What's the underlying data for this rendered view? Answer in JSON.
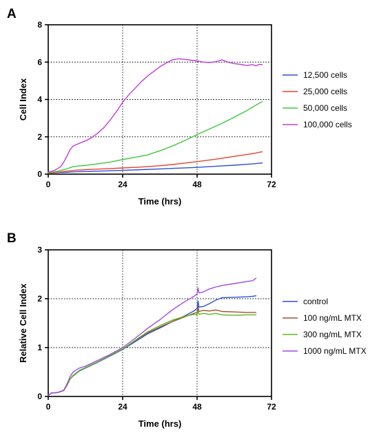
{
  "chart_data": [
    {
      "type": "line",
      "panel_label": "A",
      "xlabel": "Time (hrs)",
      "ylabel": "Cell Index",
      "xlim": [
        0,
        72
      ],
      "ylim": [
        0,
        8
      ],
      "x_ticks": [
        "0",
        "24",
        "48",
        "72"
      ],
      "y_ticks": [
        "0",
        "2",
        "4",
        "6",
        "8"
      ],
      "grid": "dotted, x at 24 and 48, y at 2, 4 and 6",
      "legend_position": "right",
      "series": [
        {
          "name": "12,500 cells",
          "color": "#2e4fd6",
          "points": [
            [
              0,
              0.05
            ],
            [
              2,
              0.07
            ],
            [
              4,
              0.09
            ],
            [
              6,
              0.1
            ],
            [
              8,
              0.12
            ],
            [
              12,
              0.14
            ],
            [
              16,
              0.16
            ],
            [
              20,
              0.18
            ],
            [
              24,
              0.2
            ],
            [
              30,
              0.24
            ],
            [
              36,
              0.28
            ],
            [
              42,
              0.32
            ],
            [
              48,
              0.36
            ],
            [
              54,
              0.42
            ],
            [
              60,
              0.48
            ],
            [
              66,
              0.55
            ],
            [
              69,
              0.6
            ]
          ]
        },
        {
          "name": "25,000 cells",
          "color": "#e8412c",
          "points": [
            [
              0,
              0.05
            ],
            [
              2,
              0.08
            ],
            [
              4,
              0.12
            ],
            [
              6,
              0.16
            ],
            [
              8,
              0.2
            ],
            [
              12,
              0.24
            ],
            [
              16,
              0.27
            ],
            [
              20,
              0.3
            ],
            [
              24,
              0.33
            ],
            [
              30,
              0.38
            ],
            [
              36,
              0.45
            ],
            [
              42,
              0.55
            ],
            [
              48,
              0.67
            ],
            [
              54,
              0.8
            ],
            [
              60,
              0.95
            ],
            [
              66,
              1.1
            ],
            [
              69,
              1.2
            ]
          ]
        },
        {
          "name": "50,000 cells",
          "color": "#3cc73c",
          "points": [
            [
              0,
              0.07
            ],
            [
              2,
              0.12
            ],
            [
              4,
              0.2
            ],
            [
              6,
              0.28
            ],
            [
              8,
              0.4
            ],
            [
              10,
              0.44
            ],
            [
              12,
              0.47
            ],
            [
              16,
              0.55
            ],
            [
              20,
              0.65
            ],
            [
              24,
              0.78
            ],
            [
              28,
              0.9
            ],
            [
              32,
              1.03
            ],
            [
              36,
              1.25
            ],
            [
              40,
              1.5
            ],
            [
              44,
              1.8
            ],
            [
              48,
              2.12
            ],
            [
              52,
              2.42
            ],
            [
              56,
              2.72
            ],
            [
              60,
              3.05
            ],
            [
              64,
              3.4
            ],
            [
              67,
              3.7
            ],
            [
              69,
              3.88
            ]
          ]
        },
        {
          "name": "100,000 cells",
          "color": "#bf3bd6",
          "points": [
            [
              0,
              0.1
            ],
            [
              2,
              0.2
            ],
            [
              4,
              0.4
            ],
            [
              5,
              0.65
            ],
            [
              6,
              0.95
            ],
            [
              7,
              1.3
            ],
            [
              8,
              1.5
            ],
            [
              10,
              1.65
            ],
            [
              12,
              1.78
            ],
            [
              14,
              1.95
            ],
            [
              16,
              2.2
            ],
            [
              18,
              2.5
            ],
            [
              20,
              2.9
            ],
            [
              22,
              3.35
            ],
            [
              24,
              3.85
            ],
            [
              26,
              4.25
            ],
            [
              28,
              4.6
            ],
            [
              30,
              4.95
            ],
            [
              32,
              5.25
            ],
            [
              34,
              5.5
            ],
            [
              36,
              5.75
            ],
            [
              38,
              5.95
            ],
            [
              40,
              6.12
            ],
            [
              42,
              6.18
            ],
            [
              44,
              6.15
            ],
            [
              46,
              6.1
            ],
            [
              48,
              6.07
            ],
            [
              50,
              6.0
            ],
            [
              52,
              5.98
            ],
            [
              54,
              6.02
            ],
            [
              56,
              6.12
            ],
            [
              58,
              6.0
            ],
            [
              60,
              5.92
            ],
            [
              62,
              5.88
            ],
            [
              64,
              5.82
            ],
            [
              66,
              5.86
            ],
            [
              67,
              5.8
            ],
            [
              68,
              5.88
            ],
            [
              69,
              5.86
            ]
          ]
        }
      ]
    },
    {
      "type": "line",
      "panel_label": "B",
      "xlabel": "Time (hrs)",
      "ylabel": "Relative Cell Index",
      "xlim": [
        0,
        72
      ],
      "ylim": [
        0,
        3
      ],
      "x_ticks": [
        "0",
        "24",
        "48",
        "72"
      ],
      "y_ticks": [
        "0",
        "1",
        "2",
        "3"
      ],
      "grid": "dotted, x at 24 and 48, y at 1 and 2",
      "legend_position": "right",
      "series": [
        {
          "name": "control",
          "color": "#2e4fd6",
          "points": [
            [
              0,
              0.02
            ],
            [
              1,
              0.07
            ],
            [
              3,
              0.08
            ],
            [
              5,
              0.12
            ],
            [
              6,
              0.22
            ],
            [
              7,
              0.35
            ],
            [
              8,
              0.42
            ],
            [
              10,
              0.52
            ],
            [
              12,
              0.58
            ],
            [
              16,
              0.7
            ],
            [
              20,
              0.83
            ],
            [
              24,
              0.96
            ],
            [
              28,
              1.12
            ],
            [
              32,
              1.28
            ],
            [
              36,
              1.4
            ],
            [
              40,
              1.53
            ],
            [
              44,
              1.65
            ],
            [
              47,
              1.75
            ],
            [
              48,
              1.8
            ],
            [
              48.3,
              1.95
            ],
            [
              48.6,
              1.83
            ],
            [
              50,
              1.84
            ],
            [
              52,
              1.9
            ],
            [
              54,
              1.97
            ],
            [
              56,
              2.02
            ],
            [
              60,
              2.03
            ],
            [
              64,
              2.04
            ],
            [
              66,
              2.05
            ],
            [
              67,
              2.06
            ]
          ]
        },
        {
          "name": "100 ng/mL MTX",
          "color": "#a0522d",
          "points": [
            [
              0,
              0.02
            ],
            [
              1,
              0.07
            ],
            [
              3,
              0.08
            ],
            [
              5,
              0.12
            ],
            [
              6,
              0.22
            ],
            [
              7,
              0.35
            ],
            [
              8,
              0.43
            ],
            [
              10,
              0.53
            ],
            [
              12,
              0.59
            ],
            [
              16,
              0.71
            ],
            [
              20,
              0.84
            ],
            [
              24,
              0.97
            ],
            [
              28,
              1.14
            ],
            [
              32,
              1.3
            ],
            [
              36,
              1.42
            ],
            [
              40,
              1.53
            ],
            [
              44,
              1.63
            ],
            [
              47,
              1.7
            ],
            [
              48,
              1.72
            ],
            [
              48.3,
              1.84
            ],
            [
              48.6,
              1.74
            ],
            [
              50,
              1.76
            ],
            [
              52,
              1.75
            ],
            [
              54,
              1.77
            ],
            [
              56,
              1.74
            ],
            [
              60,
              1.73
            ],
            [
              64,
              1.72
            ],
            [
              67,
              1.72
            ]
          ]
        },
        {
          "name": "300 ng/mL MTX",
          "color": "#58b51e",
          "points": [
            [
              0,
              0.02
            ],
            [
              1,
              0.07
            ],
            [
              3,
              0.08
            ],
            [
              5,
              0.12
            ],
            [
              6,
              0.22
            ],
            [
              7,
              0.35
            ],
            [
              8,
              0.43
            ],
            [
              10,
              0.53
            ],
            [
              12,
              0.59
            ],
            [
              16,
              0.71
            ],
            [
              20,
              0.84
            ],
            [
              24,
              0.97
            ],
            [
              28,
              1.15
            ],
            [
              32,
              1.32
            ],
            [
              36,
              1.45
            ],
            [
              40,
              1.56
            ],
            [
              44,
              1.64
            ],
            [
              47,
              1.68
            ],
            [
              48,
              1.67
            ],
            [
              48.3,
              1.76
            ],
            [
              48.6,
              1.68
            ],
            [
              50,
              1.7
            ],
            [
              52,
              1.68
            ],
            [
              54,
              1.7
            ],
            [
              56,
              1.67
            ],
            [
              60,
              1.66
            ],
            [
              64,
              1.67
            ],
            [
              67,
              1.67
            ]
          ]
        },
        {
          "name": "1000 ng/mL MTX",
          "color": "#a24ae0",
          "points": [
            [
              0,
              0.02
            ],
            [
              1,
              0.07
            ],
            [
              3,
              0.08
            ],
            [
              5,
              0.13
            ],
            [
              6,
              0.25
            ],
            [
              7,
              0.4
            ],
            [
              8,
              0.5
            ],
            [
              10,
              0.58
            ],
            [
              12,
              0.62
            ],
            [
              16,
              0.74
            ],
            [
              20,
              0.86
            ],
            [
              24,
              1.0
            ],
            [
              28,
              1.19
            ],
            [
              32,
              1.39
            ],
            [
              36,
              1.57
            ],
            [
              40,
              1.77
            ],
            [
              44,
              1.94
            ],
            [
              47,
              2.05
            ],
            [
              48,
              2.1
            ],
            [
              48.3,
              2.22
            ],
            [
              48.6,
              2.12
            ],
            [
              50,
              2.14
            ],
            [
              52,
              2.2
            ],
            [
              54,
              2.24
            ],
            [
              56,
              2.27
            ],
            [
              60,
              2.31
            ],
            [
              64,
              2.35
            ],
            [
              66,
              2.37
            ],
            [
              67,
              2.42
            ]
          ]
        }
      ]
    }
  ]
}
